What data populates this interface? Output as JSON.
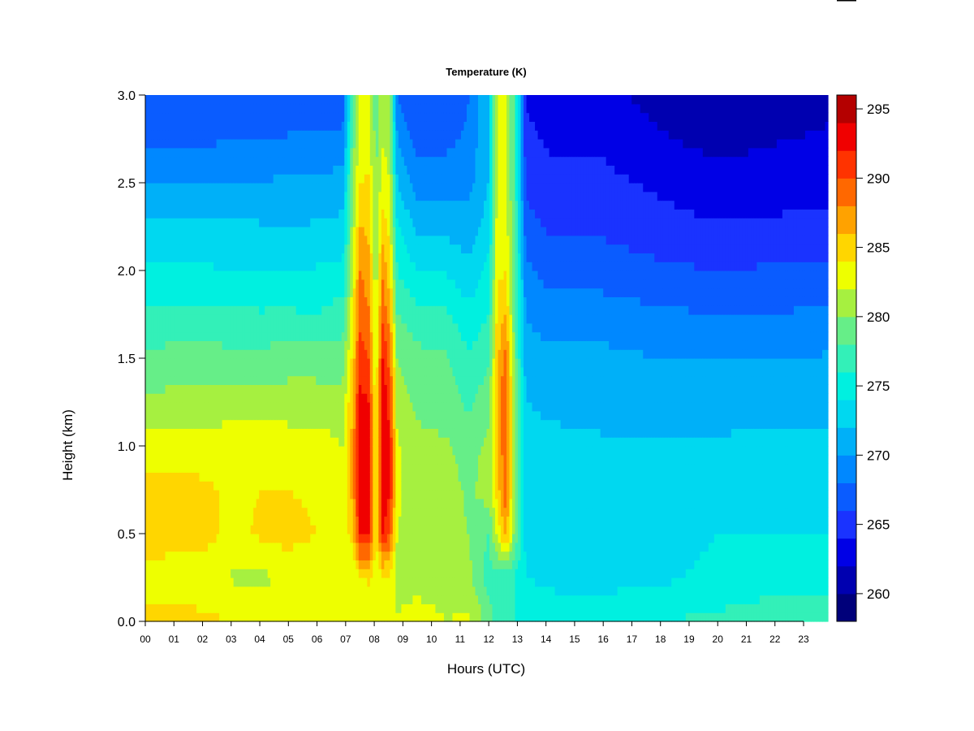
{
  "chart_data": {
    "type": "heatmap",
    "title": "Temperature (K)",
    "xlabel": "Hours (UTC)",
    "ylabel": "Height (km)",
    "x_ticks": [
      "00",
      "01",
      "02",
      "03",
      "04",
      "05",
      "06",
      "07",
      "08",
      "09",
      "10",
      "11",
      "12",
      "13",
      "14",
      "15",
      "16",
      "17",
      "18",
      "19",
      "20",
      "21",
      "22",
      "23"
    ],
    "xlim": [
      0,
      23.85
    ],
    "y_ticks": [
      "0.0",
      "0.5",
      "1.0",
      "1.5",
      "2.0",
      "2.5",
      "3.0"
    ],
    "ylim": [
      0,
      3.0
    ],
    "colorbar": {
      "levels": [
        258,
        260,
        262,
        264,
        266,
        268,
        270,
        272,
        274,
        276,
        278,
        280,
        282,
        284,
        286,
        288,
        290,
        292,
        294,
        296
      ],
      "tick_labels": [
        "260",
        "265",
        "270",
        "275",
        "280",
        "285",
        "290",
        "295"
      ],
      "colors": [
        "#00007A",
        "#0000B0",
        "#0000E6",
        "#1A33FF",
        "#0A5CFF",
        "#0088FF",
        "#00B0F8",
        "#00D8F0",
        "#00F0E0",
        "#33F0B8",
        "#66EE88",
        "#A6F040",
        "#EEFF00",
        "#FFD600",
        "#FFA200",
        "#FF6800",
        "#FF3300",
        "#F00000",
        "#B40000",
        "#7A0000"
      ]
    },
    "profiles": [
      {
        "hour": 0.0,
        "temps": [
          284.5,
          283.4,
          284.8,
          284.9,
          283.0,
          280.3,
          278.4,
          276.6,
          274.5,
          272.6,
          269.8,
          267.7,
          266.1
        ]
      },
      {
        "hour": 1.0,
        "temps": [
          284.5,
          283.0,
          284.9,
          285.0,
          283.0,
          280.7,
          278.7,
          276.6,
          274.4,
          272.6,
          269.8,
          267.8,
          266.1
        ]
      },
      {
        "hour": 2.0,
        "temps": [
          284.5,
          282.8,
          284.9,
          284.5,
          282.6,
          280.7,
          278.9,
          276.6,
          274.3,
          272.5,
          269.8,
          267.6,
          265.9
        ]
      },
      {
        "hour": 3.0,
        "temps": [
          284.0,
          281.8,
          283.3,
          283.6,
          283.0,
          281.4,
          278.5,
          276.5,
          274.0,
          272.4,
          270.2,
          268.0,
          266.1
        ]
      },
      {
        "hour": 4.0,
        "temps": [
          284.0,
          281.5,
          284.3,
          284.0,
          283.0,
          281.0,
          278.6,
          276.2,
          274.1,
          272.2,
          270.1,
          268.2,
          266.1
        ]
      },
      {
        "hour": 5.0,
        "temps": [
          284.0,
          282.2,
          285.0,
          284.0,
          283.0,
          281.0,
          279.0,
          276.3,
          273.9,
          272.1,
          270.3,
          268.2,
          266.2
        ]
      },
      {
        "hour": 6.0,
        "temps": [
          284.0,
          282.0,
          284.0,
          283.4,
          282.9,
          281.0,
          279.0,
          276.0,
          274.2,
          272.2,
          270.4,
          268.4,
          266.2
        ]
      },
      {
        "hour": 6.9,
        "temps": [
          283.5,
          282.2,
          283.0,
          282.5,
          282.0,
          280.8,
          279.0,
          277.0,
          274.6,
          272.6,
          270.8,
          268.6,
          266.6
        ]
      },
      {
        "hour": 7.25,
        "temps": [
          283.2,
          282.2,
          285.0,
          287.0,
          287.0,
          286.2,
          284.6,
          283.3,
          282.1,
          281.0,
          280.0,
          279.0,
          278.0
        ]
      },
      {
        "hour": 7.5,
        "temps": [
          283.0,
          283.6,
          292.5,
          293.2,
          293.2,
          292.8,
          291.0,
          289.5,
          288.0,
          286.0,
          284.0,
          283.0,
          282.0
        ]
      },
      {
        "hour": 7.8,
        "temps": [
          283.0,
          284.2,
          292.0,
          293.0,
          293.6,
          292.0,
          290.0,
          288.2,
          287.0,
          285.6,
          284.2,
          283.0,
          282.0
        ]
      },
      {
        "hour": 8.05,
        "temps": [
          282.8,
          282.5,
          283.5,
          283.5,
          283.0,
          282.5,
          281.8,
          281.0,
          280.5,
          280.0,
          279.6,
          279.3,
          279.0
        ]
      },
      {
        "hour": 8.3,
        "temps": [
          282.8,
          283.8,
          292.0,
          293.5,
          294.0,
          294.0,
          292.0,
          289.8,
          287.4,
          285.0,
          283.0,
          281.8,
          281.0
        ]
      },
      {
        "hour": 8.55,
        "temps": [
          282.5,
          283.6,
          290.0,
          292.0,
          292.0,
          291.0,
          289.0,
          286.8,
          284.8,
          283.0,
          282.0,
          281.2,
          280.4
        ]
      },
      {
        "hour": 8.8,
        "temps": [
          282.2,
          281.0,
          282.0,
          282.4,
          282.3,
          281.0,
          280.0,
          278.0,
          276.0,
          274.5,
          272.0,
          270.0,
          268.0
        ]
      },
      {
        "hour": 9.5,
        "temps": [
          283.0,
          281.2,
          281.0,
          281.0,
          280.6,
          279.5,
          278.6,
          276.8,
          274.0,
          271.5,
          269.0,
          267.0,
          266.0
        ]
      },
      {
        "hour": 10.5,
        "temps": [
          282.0,
          281.0,
          281.0,
          281.0,
          280.3,
          279.0,
          278.2,
          276.4,
          273.8,
          271.4,
          269.4,
          267.4,
          266.2
        ]
      },
      {
        "hour": 11.3,
        "temps": [
          282.5,
          280.6,
          280.0,
          279.6,
          279.0,
          277.6,
          276.2,
          274.6,
          272.5,
          270.8,
          269.4,
          268.4,
          268.0
        ]
      },
      {
        "hour": 12.0,
        "temps": [
          279.0,
          277.0,
          278.0,
          281.0,
          280.6,
          279.2,
          277.6,
          276.0,
          274.6,
          273.0,
          272.0,
          272.0,
          272.0
        ]
      },
      {
        "hour": 12.3,
        "temps": [
          277.0,
          277.0,
          282.6,
          285.0,
          286.0,
          286.2,
          285.4,
          284.6,
          283.6,
          283.0,
          282.5,
          282.5,
          282.5
        ]
      },
      {
        "hour": 12.6,
        "temps": [
          276.0,
          277.0,
          287.0,
          289.0,
          290.0,
          290.4,
          289.0,
          286.0,
          284.0,
          283.0,
          282.0,
          282.0,
          282.0
        ]
      },
      {
        "hour": 12.9,
        "temps": [
          276.0,
          276.0,
          279.5,
          280.6,
          280.5,
          280.0,
          279.5,
          279.0,
          278.6,
          278.3,
          278.0,
          278.0,
          278.0
        ]
      },
      {
        "hour": 13.3,
        "temps": [
          276.0,
          274.0,
          273.4,
          272.8,
          272.5,
          272.0,
          271.0,
          269.8,
          268.4,
          266.8,
          265.4,
          264.6,
          263.6
        ]
      },
      {
        "hour": 14.0,
        "temps": [
          275.0,
          273.6,
          273.0,
          272.7,
          272.3,
          271.8,
          270.7,
          269.0,
          267.4,
          265.8,
          264.5,
          263.8,
          263.0
        ]
      },
      {
        "hour": 16.0,
        "temps": [
          275.0,
          273.4,
          273.0,
          272.7,
          272.2,
          271.5,
          270.5,
          269.0,
          267.0,
          265.6,
          264.5,
          263.6,
          262.6
        ]
      },
      {
        "hour": 18.0,
        "temps": [
          276.0,
          273.6,
          273.0,
          272.8,
          272.2,
          271.4,
          270.0,
          268.4,
          266.4,
          264.8,
          263.6,
          262.2,
          261.2
        ]
      },
      {
        "hour": 20.0,
        "temps": [
          276.5,
          274.6,
          274.0,
          273.0,
          272.2,
          271.4,
          270.0,
          268.0,
          266.0,
          264.2,
          262.6,
          261.4,
          260.5
        ]
      },
      {
        "hour": 21.5,
        "temps": [
          277.0,
          275.0,
          274.0,
          273.0,
          272.4,
          271.4,
          270.0,
          268.0,
          266.2,
          264.4,
          262.8,
          261.8,
          261.0
        ]
      },
      {
        "hour": 23.85,
        "temps": [
          277.0,
          275.0,
          274.0,
          273.0,
          272.5,
          271.5,
          270.2,
          268.4,
          266.4,
          264.6,
          263.2,
          262.2,
          261.6
        ]
      }
    ],
    "profile_heights_km": [
      0.0,
      0.25,
      0.5,
      0.75,
      1.0,
      1.25,
      1.5,
      1.75,
      2.0,
      2.25,
      2.5,
      2.75,
      3.0
    ]
  }
}
